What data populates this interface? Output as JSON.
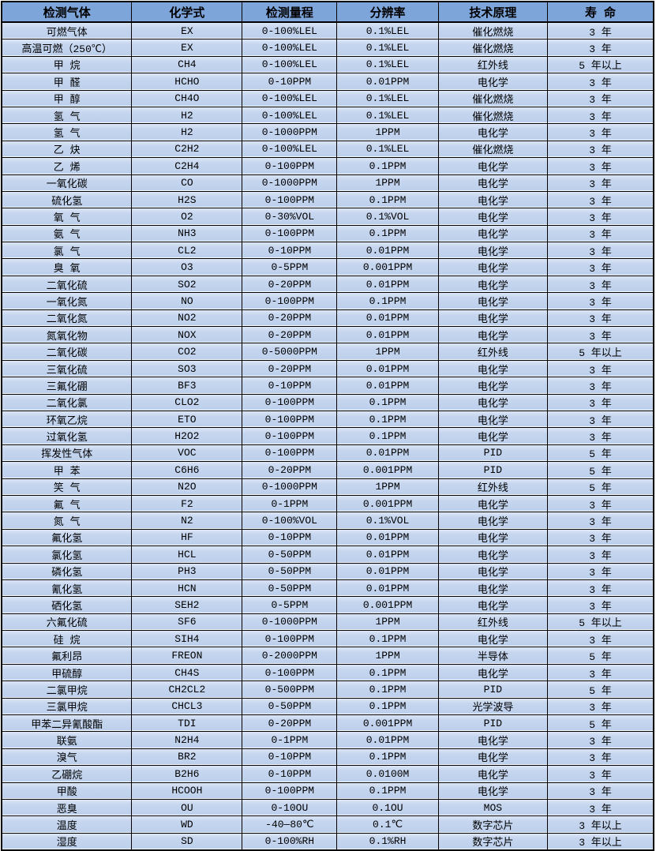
{
  "colors": {
    "header_bg": "#7da5da",
    "row_bg": "#bccfeb",
    "row_bg_highlight": "#dbe5f6",
    "border": "#000000",
    "page_bg": "#ffffff",
    "text": "#000000"
  },
  "table": {
    "headers": [
      "检测气体",
      "化学式",
      "检测量程",
      "分辨率",
      "技术原理",
      "寿 命"
    ],
    "rows": [
      [
        "可燃气体",
        "EX",
        "0-100%LEL",
        "0.1%LEL",
        "催化燃烧",
        "3 年"
      ],
      [
        "高温可燃（250℃）",
        "EX",
        "0-100%LEL",
        "0.1%LEL",
        "催化燃烧",
        "3 年"
      ],
      [
        "甲 烷",
        "CH4",
        "0-100%LEL",
        "0.1%LEL",
        "红外线",
        "5 年以上"
      ],
      [
        "甲 醛",
        "HCHO",
        "0-10PPM",
        "0.01PPM",
        "电化学",
        "3 年"
      ],
      [
        "甲 醇",
        "CH4O",
        "0-100%LEL",
        "0.1%LEL",
        "催化燃烧",
        "3 年"
      ],
      [
        "氢 气",
        "H2",
        "0-100%LEL",
        "0.1%LEL",
        "催化燃烧",
        "3 年"
      ],
      [
        "氢 气",
        "H2",
        "0-1000PPM",
        "1PPM",
        "电化学",
        "3 年"
      ],
      [
        "乙 炔",
        "C2H2",
        "0-100%LEL",
        "0.1%LEL",
        "催化燃烧",
        "3 年"
      ],
      [
        "乙 烯",
        "C2H4",
        "0-100PPM",
        "0.1PPM",
        "电化学",
        "3 年"
      ],
      [
        "一氧化碳",
        "CO",
        "0-1000PPM",
        "1PPM",
        "电化学",
        "3 年"
      ],
      [
        "硫化氢",
        "H2S",
        "0-100PPM",
        "0.1PPM",
        "电化学",
        "3 年"
      ],
      [
        "氧 气",
        "O2",
        "0-30%VOL",
        "0.1%VOL",
        "电化学",
        "3 年"
      ],
      [
        "氨 气",
        "NH3",
        "0-100PPM",
        "0.1PPM",
        "电化学",
        "3 年"
      ],
      [
        "氯 气",
        "CL2",
        "0-10PPM",
        "0.01PPM",
        "电化学",
        "3 年"
      ],
      [
        "臭 氧",
        "O3",
        "0-5PPM",
        "0.001PPM",
        "电化学",
        "3 年"
      ],
      [
        "二氧化硫",
        "SO2",
        "0-20PPM",
        "0.01PPM",
        "电化学",
        "3 年"
      ],
      [
        "一氧化氮",
        "NO",
        "0-100PPM",
        "0.1PPM",
        "电化学",
        "3 年"
      ],
      [
        "二氧化氮",
        "NO2",
        "0-20PPM",
        "0.01PPM",
        "电化学",
        "3 年"
      ],
      [
        "氮氧化物",
        "NOX",
        "0-20PPM",
        "0.01PPM",
        "电化学",
        "3 年"
      ],
      [
        "二氧化碳",
        "CO2",
        "0-5000PPM",
        "1PPM",
        "红外线",
        "5 年以上"
      ],
      [
        "三氧化硫",
        "SO3",
        "0-20PPM",
        "0.01PPM",
        "电化学",
        "3 年"
      ],
      [
        "三氟化硼",
        "BF3",
        "0-10PPM",
        "0.01PPM",
        "电化学",
        "3 年"
      ],
      [
        "二氧化氯",
        "CLO2",
        "0-100PPM",
        "0.1PPM",
        "电化学",
        "3 年"
      ],
      [
        "环氧乙烷",
        "ETO",
        "0-100PPM",
        "0.1PPM",
        "电化学",
        "3 年"
      ],
      [
        "过氧化氢",
        "H2O2",
        "0-100PPM",
        "0.1PPM",
        "电化学",
        "3 年"
      ],
      [
        "挥发性气体",
        "VOC",
        "0-100PPM",
        "0.01PPM",
        "PID",
        "5 年"
      ],
      [
        "甲 苯",
        "C6H6",
        "0-20PPM",
        "0.001PPM",
        "PID",
        "5 年"
      ],
      [
        "笑 气",
        "N2O",
        "0-1000PPM",
        "1PPM",
        "红外线",
        "5 年"
      ],
      [
        "氟 气",
        "F2",
        "0-1PPM",
        "0.001PPM",
        "电化学",
        "3 年"
      ],
      [
        "氮 气",
        "N2",
        "0-100%VOL",
        "0.1%VOL",
        "电化学",
        "3 年"
      ],
      [
        "氟化氢",
        "HF",
        "0-10PPM",
        "0.01PPM",
        "电化学",
        "3 年"
      ],
      [
        "氯化氢",
        "HCL",
        "0-50PPM",
        "0.01PPM",
        "电化学",
        "3 年"
      ],
      [
        "磷化氢",
        "PH3",
        "0-50PPM",
        "0.01PPM",
        "电化学",
        "3 年"
      ],
      [
        "氰化氢",
        "HCN",
        "0-50PPM",
        "0.01PPM",
        "电化学",
        "3 年"
      ],
      [
        "硒化氢",
        "SEH2",
        "0-5PPM",
        "0.001PPM",
        "电化学",
        "3 年"
      ],
      [
        "六氟化硫",
        "SF6",
        "0-1000PPM",
        "1PPM",
        "红外线",
        "5 年以上"
      ],
      [
        "硅 烷",
        "SIH4",
        "0-100PPM",
        "0.1PPM",
        "电化学",
        "3 年"
      ],
      [
        "氟利昂",
        "FREON",
        "0-2000PPM",
        "1PPM",
        "半导体",
        "5 年"
      ],
      [
        "甲硫醇",
        "CH4S",
        "0-100PPM",
        "0.1PPM",
        "电化学",
        "3 年"
      ],
      [
        "二氯甲烷",
        "CH2CL2",
        "0-500PPM",
        "0.1PPM",
        "PID",
        "5 年"
      ],
      [
        "三氯甲烷",
        "CHCL3",
        "0-50PPM",
        "0.1PPM",
        "光学波导",
        "3 年"
      ],
      [
        "甲苯二异氰酸酯",
        "TDI",
        "0-20PPM",
        "0.001PPM",
        "PID",
        "5 年"
      ],
      [
        "联氨",
        "N2H4",
        "0-1PPM",
        "0.01PPM",
        "电化学",
        "3 年"
      ],
      [
        "溴气",
        "BR2",
        "0-10PPM",
        "0.1PPM",
        "电化学",
        "3 年"
      ],
      [
        "乙硼烷",
        "B2H6",
        "0-10PPM",
        "0.0100M",
        "电化学",
        "3 年"
      ],
      [
        "甲酸",
        "HCOOH",
        "0-100PPM",
        "0.1PPM",
        "电化学",
        "3 年"
      ],
      [
        "恶臭",
        "OU",
        "0-10OU",
        "0.1OU",
        "MOS",
        "3 年"
      ],
      [
        "温度",
        "WD",
        "-40—80℃",
        "0.1℃",
        "数字芯片",
        "3 年以上"
      ],
      [
        "湿度",
        "SD",
        "0-100%RH",
        "0.1%RH",
        "数字芯片",
        "3 年以上"
      ]
    ]
  }
}
